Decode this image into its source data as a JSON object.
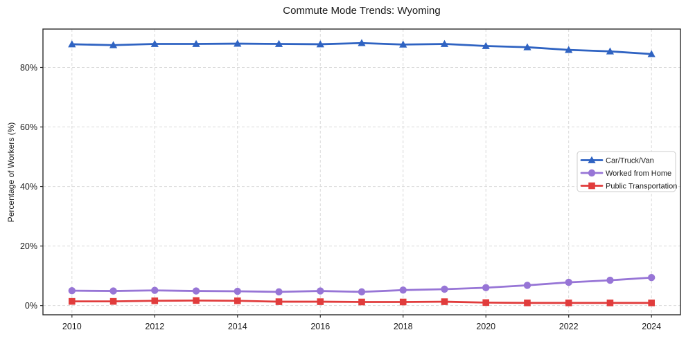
{
  "chart_data": {
    "type": "line",
    "title": "Commute Mode Trends: Wyoming",
    "xlabel": "",
    "ylabel": "Percentage of Workers (%)",
    "x": [
      2010,
      2011,
      2012,
      2013,
      2014,
      2015,
      2016,
      2017,
      2018,
      2019,
      2020,
      2021,
      2022,
      2023,
      2024
    ],
    "series": [
      {
        "name": "Car/Truck/Van",
        "color": "#2f63c2",
        "marker": "triangle",
        "values": [
          87.8,
          87.5,
          87.9,
          87.9,
          88.0,
          87.9,
          87.8,
          88.2,
          87.7,
          87.9,
          87.2,
          86.8,
          85.9,
          85.4,
          84.5
        ]
      },
      {
        "name": "Worked from Home",
        "color": "#9775d6",
        "marker": "circle",
        "values": [
          5.0,
          4.9,
          5.1,
          4.9,
          4.8,
          4.6,
          4.9,
          4.6,
          5.2,
          5.5,
          6.0,
          6.8,
          7.8,
          8.5,
          9.4
        ]
      },
      {
        "name": "Public Transportation",
        "color": "#e13c3c",
        "marker": "square",
        "values": [
          1.4,
          1.4,
          1.6,
          1.7,
          1.6,
          1.3,
          1.3,
          1.2,
          1.2,
          1.3,
          1.0,
          0.9,
          0.9,
          0.9,
          0.9
        ]
      }
    ],
    "xticks": [
      2010,
      2012,
      2014,
      2016,
      2018,
      2020,
      2022,
      2024
    ],
    "xtick_labels": [
      "2010",
      "2012",
      "2014",
      "2016",
      "2018",
      "2020",
      "2022",
      "2024"
    ],
    "yticks": [
      0,
      20,
      40,
      60,
      80
    ],
    "ytick_labels": [
      "0%",
      "20%",
      "40%",
      "60%",
      "80%"
    ],
    "xlim": [
      2009.3,
      2024.7
    ],
    "ylim": [
      -3.1,
      92.9
    ],
    "grid": true,
    "grid_style": "dashed",
    "grid_color": "#d9d9d9",
    "spine_color": "#2b2b2b",
    "tick_label_color": "#1a1a1a",
    "background_color": "#ffffff",
    "legend_position": "center-right",
    "legend_border_color": "#cccccc"
  }
}
